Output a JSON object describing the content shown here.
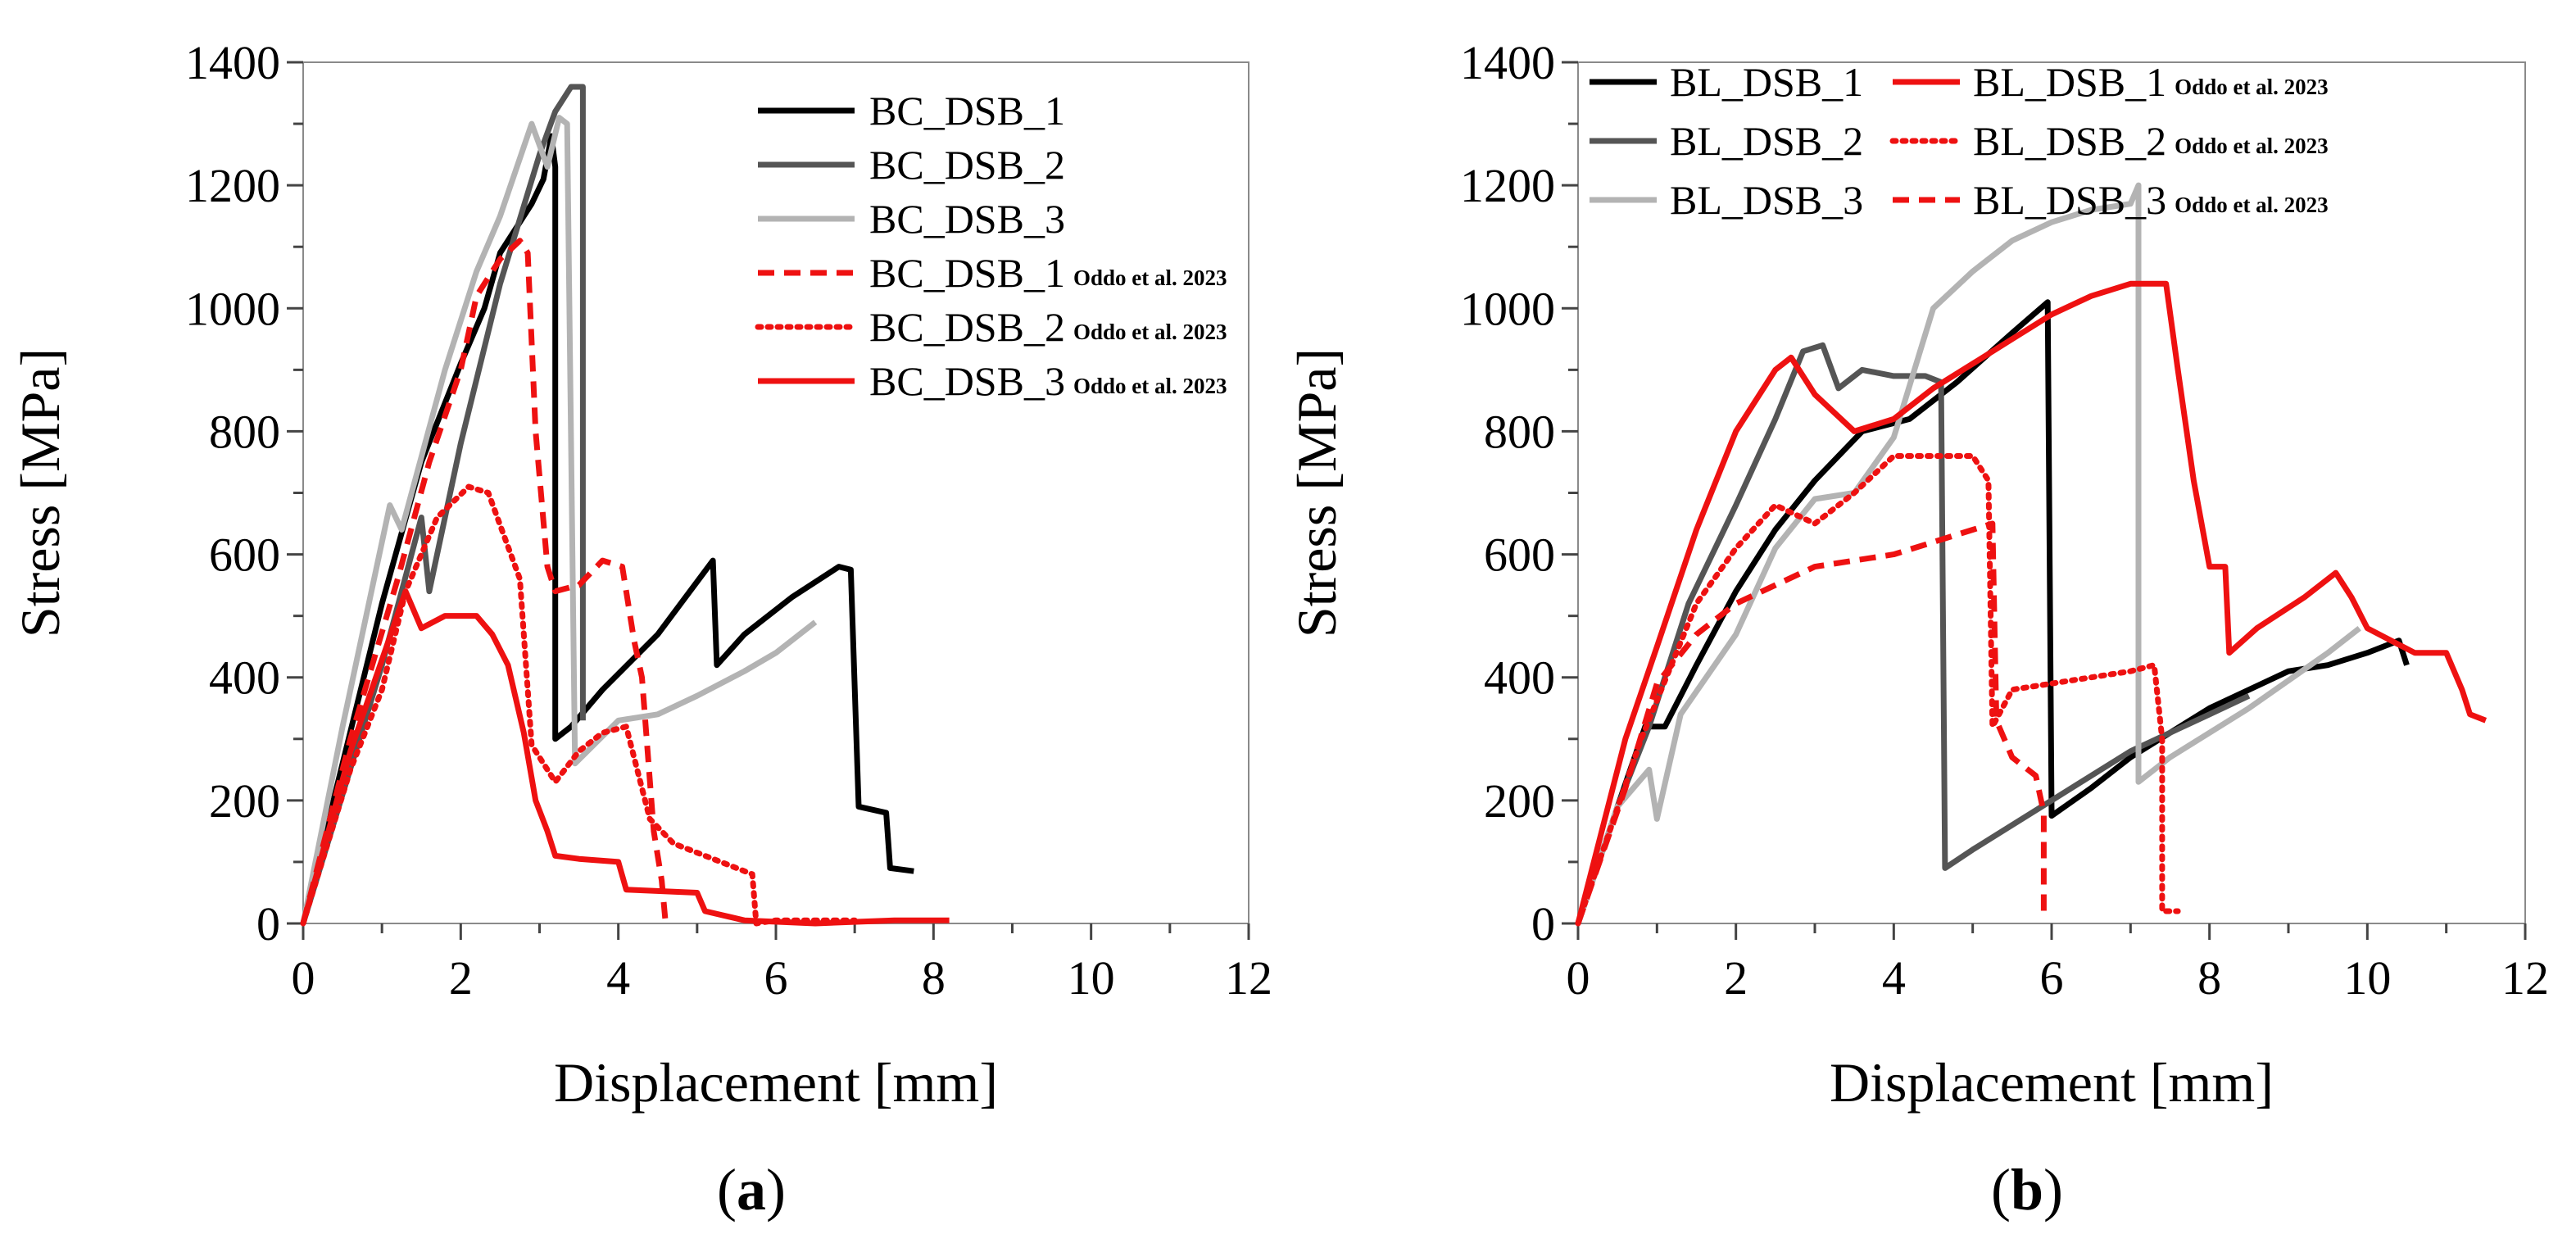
{
  "colors": {
    "black": "#000000",
    "dark_gray": "#555555",
    "light_gray": "#b3b3b3",
    "red": "#ee1111"
  },
  "chart_data": [
    {
      "type": "line",
      "panel_label": "(a)",
      "panel_letter": "a",
      "xlabel": "Displacement  [mm]",
      "ylabel": "Stress [MPa]",
      "xlim": [
        0,
        12
      ],
      "ylim": [
        0,
        1400
      ],
      "xticks": [
        0,
        2,
        4,
        6,
        8,
        10,
        12
      ],
      "yticks": [
        0,
        200,
        400,
        600,
        800,
        1000,
        1200,
        1400
      ],
      "legend_position": "top-right",
      "series": [
        {
          "name": "BC_DSB_1",
          "source": "",
          "color": "black",
          "dash": "solid",
          "points": [
            [
              0,
              0
            ],
            [
              1,
              520
            ],
            [
              1.5,
              750
            ],
            [
              2,
              910
            ],
            [
              2.3,
              1000
            ],
            [
              2.5,
              1090
            ],
            [
              2.7,
              1130
            ],
            [
              2.9,
              1170
            ],
            [
              3.05,
              1210
            ],
            [
              3.15,
              1280
            ],
            [
              3.2,
              1230
            ],
            [
              3.2,
              300
            ],
            [
              3.4,
              320
            ],
            [
              3.8,
              380
            ],
            [
              4.5,
              470
            ],
            [
              5.2,
              590
            ],
            [
              5.25,
              420
            ],
            [
              5.6,
              470
            ],
            [
              6.2,
              530
            ],
            [
              6.8,
              580
            ],
            [
              6.95,
              575
            ],
            [
              7.05,
              190
            ],
            [
              7.4,
              180
            ],
            [
              7.45,
              90
            ],
            [
              7.75,
              85
            ]
          ]
        },
        {
          "name": "BC_DSB_2",
          "source": "",
          "color": "dark_gray",
          "dash": "solid",
          "points": [
            [
              0,
              0
            ],
            [
              1,
              420
            ],
            [
              1.5,
              660
            ],
            [
              1.6,
              540
            ],
            [
              2,
              780
            ],
            [
              2.5,
              1040
            ],
            [
              3,
              1250
            ],
            [
              3.2,
              1320
            ],
            [
              3.4,
              1360
            ],
            [
              3.55,
              1360
            ],
            [
              3.55,
              330
            ]
          ]
        },
        {
          "name": "BC_DSB_3",
          "source": "",
          "color": "light_gray",
          "dash": "solid",
          "points": [
            [
              0,
              0
            ],
            [
              0.5,
              320
            ],
            [
              1.1,
              680
            ],
            [
              1.25,
              640
            ],
            [
              1.8,
              900
            ],
            [
              2.2,
              1060
            ],
            [
              2.5,
              1150
            ],
            [
              2.9,
              1300
            ],
            [
              3.1,
              1230
            ],
            [
              3.25,
              1310
            ],
            [
              3.35,
              1300
            ],
            [
              3.45,
              260
            ],
            [
              4,
              330
            ],
            [
              4.5,
              340
            ],
            [
              5,
              370
            ],
            [
              5.6,
              410
            ],
            [
              6,
              440
            ],
            [
              6.5,
              490
            ]
          ]
        },
        {
          "name": "BC_DSB_1",
          "source": "Oddo et al. 2023",
          "color": "red",
          "dash": "dash",
          "points": [
            [
              0,
              0
            ],
            [
              0.6,
              300
            ],
            [
              1.2,
              560
            ],
            [
              1.6,
              750
            ],
            [
              2,
              900
            ],
            [
              2.2,
              1020
            ],
            [
              2.5,
              1080
            ],
            [
              2.75,
              1110
            ],
            [
              2.85,
              1090
            ],
            [
              2.95,
              800
            ],
            [
              3.1,
              580
            ],
            [
              3.2,
              540
            ],
            [
              3.5,
              550
            ],
            [
              3.8,
              590
            ],
            [
              4.05,
              580
            ],
            [
              4.2,
              460
            ],
            [
              4.3,
              400
            ],
            [
              4.45,
              150
            ],
            [
              4.55,
              70
            ],
            [
              4.6,
              0
            ]
          ]
        },
        {
          "name": "BC_DSB_2",
          "source": "Oddo et al. 2023",
          "color": "red",
          "dash": "dot",
          "points": [
            [
              0,
              0
            ],
            [
              0.6,
              250
            ],
            [
              1,
              380
            ],
            [
              1.3,
              540
            ],
            [
              1.7,
              660
            ],
            [
              2.1,
              710
            ],
            [
              2.35,
              700
            ],
            [
              2.55,
              630
            ],
            [
              2.75,
              560
            ],
            [
              2.9,
              290
            ],
            [
              3.2,
              230
            ],
            [
              3.5,
              280
            ],
            [
              3.8,
              310
            ],
            [
              4.1,
              320
            ],
            [
              4.4,
              170
            ],
            [
              4.7,
              130
            ],
            [
              5.1,
              110
            ],
            [
              5.5,
              90
            ],
            [
              5.7,
              80
            ],
            [
              5.75,
              0
            ],
            [
              6,
              5
            ],
            [
              6.5,
              5
            ],
            [
              7,
              5
            ]
          ]
        },
        {
          "name": "BC_DSB_3",
          "source": "Oddo et al. 2023",
          "color": "red",
          "dash": "solid",
          "points": [
            [
              0,
              0
            ],
            [
              0.6,
              280
            ],
            [
              1.3,
              540
            ],
            [
              1.5,
              480
            ],
            [
              1.8,
              500
            ],
            [
              2.2,
              500
            ],
            [
              2.4,
              470
            ],
            [
              2.6,
              420
            ],
            [
              2.8,
              310
            ],
            [
              2.95,
              200
            ],
            [
              3.1,
              150
            ],
            [
              3.2,
              110
            ],
            [
              3.5,
              105
            ],
            [
              4,
              100
            ],
            [
              4.1,
              55
            ],
            [
              5,
              50
            ],
            [
              5.1,
              20
            ],
            [
              5.6,
              5
            ],
            [
              6.5,
              0
            ],
            [
              7.5,
              5
            ],
            [
              8.2,
              5
            ]
          ]
        }
      ]
    },
    {
      "type": "line",
      "panel_label": "(b)",
      "panel_letter": "b",
      "xlabel": "Displacement  [mm]",
      "ylabel": "Stress [MPa]",
      "xlim": [
        0,
        12
      ],
      "ylim": [
        0,
        1400
      ],
      "xticks": [
        0,
        2,
        4,
        6,
        8,
        10,
        12
      ],
      "yticks": [
        0,
        200,
        400,
        600,
        800,
        1000,
        1200,
        1400
      ],
      "legend_position": "top-left",
      "series": [
        {
          "name": "BL_DSB_1",
          "source": "",
          "color": "black",
          "dash": "solid",
          "points": [
            [
              0,
              0
            ],
            [
              0.5,
              190
            ],
            [
              0.85,
              320
            ],
            [
              1.1,
              320
            ],
            [
              1.5,
              420
            ],
            [
              2,
              540
            ],
            [
              2.5,
              640
            ],
            [
              3,
              720
            ],
            [
              3.6,
              800
            ],
            [
              4.2,
              820
            ],
            [
              4.8,
              880
            ],
            [
              5.5,
              960
            ],
            [
              5.95,
              1010
            ],
            [
              6,
              175
            ],
            [
              6.5,
              220
            ],
            [
              7,
              270
            ],
            [
              8,
              350
            ],
            [
              9,
              410
            ],
            [
              9.5,
              420
            ],
            [
              10,
              440
            ],
            [
              10.4,
              460
            ],
            [
              10.5,
              420
            ]
          ]
        },
        {
          "name": "BL_DSB_2",
          "source": "",
          "color": "dark_gray",
          "dash": "solid",
          "points": [
            [
              0,
              0
            ],
            [
              0.5,
              190
            ],
            [
              0.9,
              320
            ],
            [
              1.4,
              520
            ],
            [
              2,
              680
            ],
            [
              2.5,
              820
            ],
            [
              2.85,
              930
            ],
            [
              3.1,
              940
            ],
            [
              3.3,
              870
            ],
            [
              3.6,
              900
            ],
            [
              4,
              890
            ],
            [
              4.4,
              890
            ],
            [
              4.6,
              880
            ],
            [
              4.65,
              90
            ],
            [
              5,
              120
            ],
            [
              6,
              200
            ],
            [
              7,
              280
            ],
            [
              8,
              340
            ],
            [
              8.5,
              370
            ]
          ]
        },
        {
          "name": "BL_DSB_3",
          "source": "",
          "color": "light_gray",
          "dash": "solid",
          "points": [
            [
              0,
              0
            ],
            [
              0.5,
              190
            ],
            [
              0.9,
              250
            ],
            [
              1.0,
              170
            ],
            [
              1.3,
              340
            ],
            [
              2,
              470
            ],
            [
              2.5,
              610
            ],
            [
              3,
              690
            ],
            [
              3.5,
              700
            ],
            [
              4,
              790
            ],
            [
              4.5,
              1000
            ],
            [
              5,
              1060
            ],
            [
              5.5,
              1110
            ],
            [
              6,
              1140
            ],
            [
              6.5,
              1160
            ],
            [
              7,
              1170
            ],
            [
              7.1,
              1200
            ],
            [
              7.1,
              230
            ],
            [
              7.5,
              270
            ],
            [
              8.5,
              350
            ],
            [
              9.5,
              440
            ],
            [
              9.9,
              480
            ]
          ]
        },
        {
          "name": "BL_DSB_1",
          "source": "Oddo et al. 2023",
          "color": "red",
          "dash": "solid",
          "points": [
            [
              0,
              0
            ],
            [
              0.6,
              300
            ],
            [
              1,
              450
            ],
            [
              1.5,
              640
            ],
            [
              2,
              800
            ],
            [
              2.5,
              900
            ],
            [
              2.7,
              920
            ],
            [
              3,
              860
            ],
            [
              3.5,
              800
            ],
            [
              4,
              820
            ],
            [
              4.5,
              870
            ],
            [
              5,
              910
            ],
            [
              5.5,
              950
            ],
            [
              6,
              990
            ],
            [
              6.5,
              1020
            ],
            [
              7,
              1040
            ],
            [
              7.3,
              1040
            ],
            [
              7.45,
              1040
            ],
            [
              7.6,
              900
            ],
            [
              7.8,
              720
            ],
            [
              8,
              580
            ],
            [
              8.2,
              580
            ],
            [
              8.25,
              440
            ],
            [
              8.6,
              480
            ],
            [
              9.2,
              530
            ],
            [
              9.6,
              570
            ],
            [
              9.8,
              530
            ],
            [
              10,
              480
            ],
            [
              10.6,
              440
            ],
            [
              11,
              440
            ],
            [
              11.2,
              380
            ],
            [
              11.3,
              340
            ],
            [
              11.5,
              330
            ]
          ]
        },
        {
          "name": "BL_DSB_2",
          "source": "Oddo et al. 2023",
          "color": "red",
          "dash": "dot",
          "points": [
            [
              0,
              0
            ],
            [
              0.8,
              300
            ],
            [
              1.5,
              520
            ],
            [
              2,
              610
            ],
            [
              2.5,
              680
            ],
            [
              3,
              650
            ],
            [
              3.5,
              700
            ],
            [
              4,
              760
            ],
            [
              4.5,
              760
            ],
            [
              5,
              760
            ],
            [
              5.2,
              720
            ],
            [
              5.25,
              320
            ],
            [
              5.5,
              380
            ],
            [
              6,
              390
            ],
            [
              6.5,
              400
            ],
            [
              7,
              410
            ],
            [
              7.3,
              420
            ],
            [
              7.4,
              300
            ],
            [
              7.4,
              20
            ],
            [
              7.6,
              20
            ]
          ]
        },
        {
          "name": "BL_DSB_3",
          "source": "Oddo et al. 2023",
          "color": "red",
          "dash": "dash",
          "points": [
            [
              0,
              0
            ],
            [
              0.6,
              220
            ],
            [
              1,
              390
            ],
            [
              1.5,
              470
            ],
            [
              2,
              520
            ],
            [
              2.5,
              550
            ],
            [
              3,
              580
            ],
            [
              3.5,
              590
            ],
            [
              4,
              600
            ],
            [
              4.5,
              620
            ],
            [
              5,
              640
            ],
            [
              5.25,
              650
            ],
            [
              5.3,
              330
            ],
            [
              5.5,
              270
            ],
            [
              5.8,
              240
            ],
            [
              5.9,
              180
            ],
            [
              5.9,
              20
            ]
          ]
        }
      ]
    }
  ]
}
